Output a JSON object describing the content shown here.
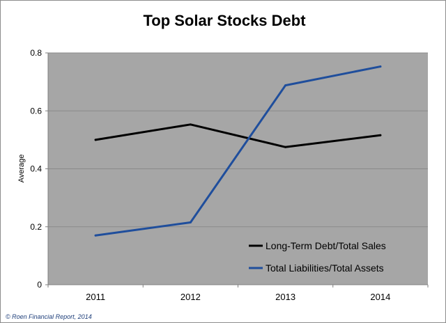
{
  "chart_data": {
    "type": "line",
    "title": "Top Solar Stocks Debt",
    "xlabel": "",
    "ylabel": "Average",
    "categories": [
      "2011",
      "2012",
      "2013",
      "2014"
    ],
    "ylim": [
      0,
      0.8
    ],
    "yticks": [
      "0",
      "0.2",
      "0.4",
      "0.6",
      "0.8"
    ],
    "grid": true,
    "legend_position": "bottom-right",
    "series": [
      {
        "name": "Long-Term Debt/Total Sales",
        "values": [
          0.5,
          0.553,
          0.475,
          0.516
        ],
        "color": "#000000"
      },
      {
        "name": "Total Liabilities/Total Assets",
        "values": [
          0.17,
          0.215,
          0.688,
          0.753
        ],
        "color": "#1f4e9c"
      }
    ],
    "plot_background": "#a6a6a6",
    "gridline_color": "#8a8a8a"
  },
  "footer": {
    "copyright": "© Roen Financial Report, 2014"
  }
}
